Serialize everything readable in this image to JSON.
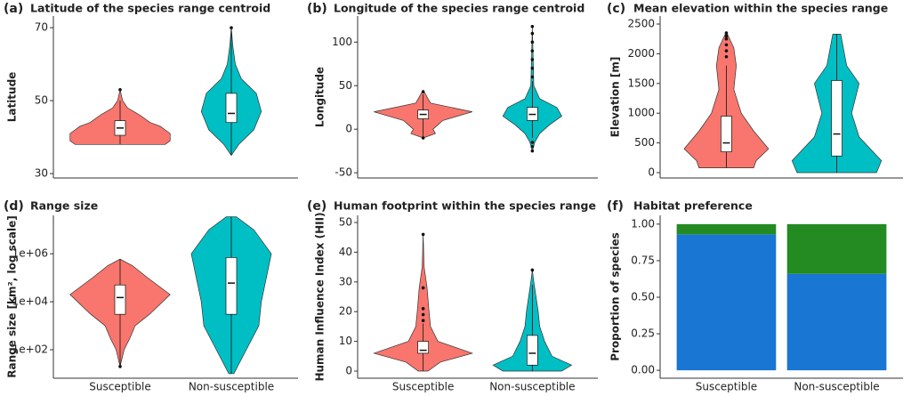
{
  "chart_data": [
    {
      "type": "violin",
      "label": "(a)",
      "title": "Latitude of the species range centroid",
      "ylabel": "Latitude",
      "ylim": [
        28.8,
        73.2
      ],
      "yticks": [
        30,
        50,
        70
      ],
      "violins": [
        {
          "color": "#f8766d",
          "y": [
            38,
            39,
            41,
            43,
            44,
            46,
            48,
            50,
            53
          ],
          "width": [
            0.9,
            1,
            1,
            0.8,
            0.6,
            0.4,
            0.15,
            0.05,
            0
          ],
          "box": [
            40.5,
            42.5,
            44.5
          ],
          "whiskers": [
            38,
            50
          ],
          "outliers": [
            53
          ]
        },
        {
          "color": "#00bfc4",
          "y": [
            35,
            38,
            42,
            47,
            52,
            56,
            60,
            65,
            70
          ],
          "width": [
            0,
            0.15,
            0.45,
            0.6,
            0.5,
            0.2,
            0.08,
            0.03,
            0
          ],
          "box": [
            44,
            46.5,
            52
          ],
          "whiskers": [
            35,
            70
          ],
          "outliers": [
            70
          ]
        }
      ]
    },
    {
      "type": "violin",
      "label": "(b)",
      "title": "Longitude of the species range centroid",
      "ylabel": "Longitude",
      "ylim": [
        -56,
        130
      ],
      "yticks": [
        -50,
        0,
        50,
        100
      ],
      "violins": [
        {
          "color": "#f8766d",
          "y": [
            -10,
            -5,
            0,
            5,
            10,
            20,
            30,
            40,
            45
          ],
          "width": [
            0,
            0.25,
            0.2,
            0.3,
            0.4,
            1,
            0.15,
            0.05,
            0
          ],
          "box": [
            12,
            17,
            22
          ],
          "whiskers": [
            -10,
            40
          ],
          "outliers": [
            -10,
            43
          ]
        },
        {
          "color": "#00bfc4",
          "y": [
            -25,
            -15,
            -5,
            5,
            15,
            25,
            35,
            50,
            118
          ],
          "width": [
            0,
            0.05,
            0.15,
            0.35,
            0.6,
            0.5,
            0.15,
            0.03,
            0
          ],
          "box": [
            10,
            17,
            25
          ],
          "whiskers": [
            -10,
            55
          ],
          "outliers": [
            -15,
            -20,
            -25,
            60,
            70,
            80,
            90,
            100,
            110,
            118
          ]
        }
      ]
    },
    {
      "type": "violin",
      "label": "(c)",
      "title": "Mean elevation within the species range",
      "ylabel": "Elevation [m]",
      "ylim": [
        -90,
        2635
      ],
      "yticks": [
        0,
        500,
        1000,
        1500,
        2000,
        2500
      ],
      "violins": [
        {
          "color": "#f8766d",
          "y": [
            80,
            200,
            400,
            700,
            1000,
            1400,
            1800,
            2100,
            2370
          ],
          "width": [
            0.55,
            0.6,
            0.85,
            0.55,
            0.3,
            0.15,
            0.2,
            0.15,
            0
          ],
          "box": [
            350,
            500,
            950
          ],
          "whiskers": [
            80,
            1800
          ],
          "outliers": [
            1950,
            2050,
            2150,
            2250,
            2300,
            2350
          ]
        },
        {
          "color": "#00bfc4",
          "y": [
            0,
            200,
            600,
            1000,
            1500,
            1800,
            2330
          ],
          "width": [
            0.8,
            0.9,
            0.45,
            0.3,
            0.45,
            0.2,
            0.08
          ],
          "box": [
            280,
            650,
            1550
          ],
          "whiskers": [
            0,
            2330
          ],
          "outliers": []
        }
      ]
    },
    {
      "type": "violin",
      "label": "(d)",
      "title": "Range size",
      "ylabel": "Range size [km², log scale]",
      "log": true,
      "ylim": [
        6.5,
        40000000
      ],
      "yticks": [
        {
          "value": 100,
          "label": "1e+02"
        },
        {
          "value": 10000,
          "label": "1e+04"
        },
        {
          "value": 1000000,
          "label": "1e+06"
        }
      ],
      "categories": [
        "Susceptible",
        "Non-susceptible"
      ],
      "violins": [
        {
          "color": "#f8766d",
          "y": [
            20,
            100,
            316,
            1000,
            3162,
            20000,
            100000,
            316228,
            600000
          ],
          "width": [
            0,
            0.08,
            0.2,
            0.3,
            0.6,
            1,
            0.55,
            0.25,
            0
          ],
          "box": [
            3000,
            15000,
            50000
          ],
          "whiskers": [
            20,
            600000
          ],
          "outliers": [
            20
          ]
        },
        {
          "color": "#00bfc4",
          "y": [
            10,
            100,
            1000,
            10000,
            100000,
            1000000,
            10000000,
            35000000
          ],
          "width": [
            0.05,
            0.3,
            0.55,
            0.6,
            0.7,
            0.8,
            0.45,
            0.1
          ],
          "box": [
            3000,
            60000,
            700000
          ],
          "whiskers": [
            10,
            35000000
          ],
          "outliers": []
        }
      ]
    },
    {
      "type": "violin",
      "label": "(e)",
      "title": "Human footprint within the species range",
      "ylabel": "Human Influence Index (HII)",
      "ylim": [
        -2.4,
        52.4
      ],
      "yticks": [
        0,
        10,
        20,
        30,
        40,
        50
      ],
      "categories": [
        "Susceptible",
        "Non-susceptible"
      ],
      "violins": [
        {
          "color": "#f8766d",
          "y": [
            0,
            3,
            6,
            10,
            15,
            20,
            28,
            35,
            46
          ],
          "width": [
            0.1,
            0.35,
            1,
            0.3,
            0.15,
            0.12,
            0.08,
            0.02,
            0
          ],
          "box": [
            6,
            7,
            10
          ],
          "whiskers": [
            0,
            16
          ],
          "outliers": [
            17,
            19,
            21,
            28,
            46
          ]
        },
        {
          "color": "#00bfc4",
          "y": [
            0,
            2,
            5,
            10,
            15,
            20,
            30,
            34
          ],
          "width": [
            0.6,
            0.8,
            0.4,
            0.25,
            0.15,
            0.12,
            0.03,
            0
          ],
          "box": [
            2,
            6,
            12
          ],
          "whiskers": [
            0,
            29
          ],
          "outliers": [
            34
          ]
        }
      ]
    },
    {
      "type": "bar",
      "label": "(f)",
      "title": "Habitat preference",
      "ylabel": "Proportion of species",
      "ylim": [
        -0.054,
        1.06
      ],
      "yticks": [
        {
          "value": 0,
          "label": "0.00"
        },
        {
          "value": 0.25,
          "label": "0.25"
        },
        {
          "value": 0.5,
          "label": "0.50"
        },
        {
          "value": 0.75,
          "label": "0.75"
        },
        {
          "value": 1,
          "label": "1.00"
        }
      ],
      "categories": [
        "Susceptible",
        "Non-susceptible"
      ],
      "series": [
        {
          "color": "#1976d2",
          "values": [
            0.93,
            0.66
          ]
        },
        {
          "color": "#238b22",
          "values": [
            0.07,
            0.34
          ]
        }
      ]
    }
  ]
}
